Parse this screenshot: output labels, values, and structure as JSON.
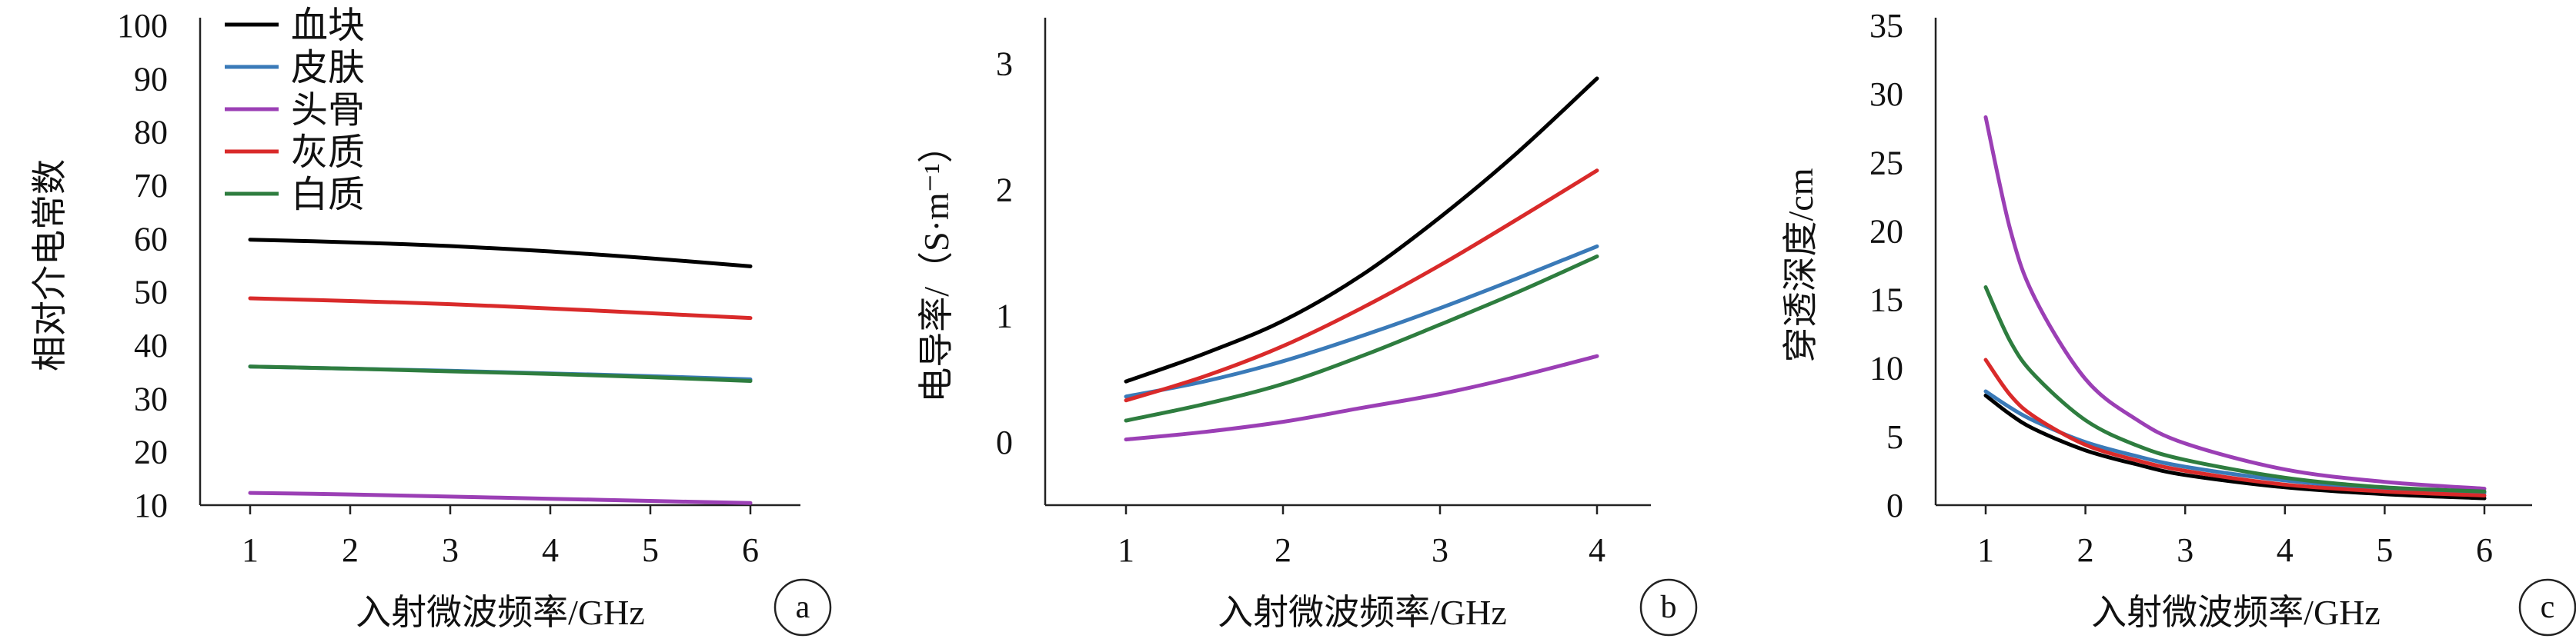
{
  "legend": [
    {
      "label": "血块",
      "color": "#000000"
    },
    {
      "label": "皮肤",
      "color": "#3a7ab8"
    },
    {
      "label": "头骨",
      "color": "#9b3fb5"
    },
    {
      "label": "灰质",
      "color": "#d92a2a"
    },
    {
      "label": "白质",
      "color": "#2e7d3f"
    }
  ],
  "chart_data": [
    {
      "panel": "a",
      "type": "line",
      "xlabel": "入射微波频率/GHz",
      "ylabel": "相对介电常数",
      "xlim": [
        1,
        6
      ],
      "ylim": [
        10,
        100
      ],
      "xticks": [
        1,
        2,
        3,
        4,
        5,
        6
      ],
      "yticks": [
        10,
        20,
        30,
        40,
        50,
        60,
        70,
        80,
        90,
        100
      ],
      "x": [
        1,
        2,
        3,
        4,
        5,
        6
      ],
      "series": [
        {
          "name": "血块",
          "color": "#000000",
          "values": [
            59.8,
            59.3,
            58.6,
            57.6,
            56.3,
            54.8
          ]
        },
        {
          "name": "皮肤",
          "color": "#3a7ab8",
          "values": [
            36.0,
            35.6,
            35.2,
            34.7,
            34.2,
            33.6
          ]
        },
        {
          "name": "头骨",
          "color": "#9b3fb5",
          "values": [
            12.3,
            12.0,
            11.6,
            11.2,
            10.8,
            10.4
          ]
        },
        {
          "name": "灰质",
          "color": "#d92a2a",
          "values": [
            48.8,
            48.3,
            47.7,
            46.9,
            46.0,
            45.1
          ]
        },
        {
          "name": "白质",
          "color": "#2e7d3f",
          "values": [
            36.0,
            35.6,
            35.1,
            34.6,
            34.0,
            33.3
          ]
        }
      ],
      "legend_position": "top-left",
      "grid": false
    },
    {
      "panel": "b",
      "type": "line",
      "xlabel": "入射微波频率/GHz",
      "ylabel": "电导率/（S·m⁻¹）",
      "xlim": [
        1,
        4
      ],
      "ylim": [
        -0.5,
        3.3
      ],
      "xticks": [
        1,
        2,
        3,
        4
      ],
      "yticks": [
        0,
        1,
        2,
        3
      ],
      "x": [
        1,
        1.5,
        2,
        2.5,
        3,
        3.5,
        4
      ],
      "series": [
        {
          "name": "血块",
          "color": "#000000",
          "values": [
            0.48,
            0.7,
            0.96,
            1.32,
            1.78,
            2.3,
            2.88
          ]
        },
        {
          "name": "皮肤",
          "color": "#3a7ab8",
          "values": [
            0.36,
            0.48,
            0.64,
            0.84,
            1.06,
            1.3,
            1.55
          ]
        },
        {
          "name": "头骨",
          "color": "#9b3fb5",
          "values": [
            0.02,
            0.08,
            0.16,
            0.27,
            0.38,
            0.52,
            0.68
          ]
        },
        {
          "name": "灰质",
          "color": "#d92a2a",
          "values": [
            0.33,
            0.52,
            0.76,
            1.06,
            1.4,
            1.77,
            2.15
          ]
        },
        {
          "name": "白质",
          "color": "#2e7d3f",
          "values": [
            0.17,
            0.3,
            0.46,
            0.68,
            0.93,
            1.19,
            1.47
          ]
        }
      ],
      "grid": false
    },
    {
      "panel": "c",
      "type": "line",
      "xlabel": "入射微波频率/GHz",
      "ylabel": "穿透深度/cm",
      "xlim": [
        1,
        6
      ],
      "ylim": [
        0,
        35
      ],
      "xticks": [
        1,
        2,
        3,
        4,
        5,
        6
      ],
      "yticks": [
        0,
        5,
        10,
        15,
        20,
        25,
        30,
        35
      ],
      "x": [
        1,
        1.25,
        1.5,
        2,
        2.5,
        3,
        4,
        5,
        6
      ],
      "series": [
        {
          "name": "血块",
          "color": "#000000",
          "values": [
            8.0,
            6.6,
            5.5,
            4.0,
            3.0,
            2.2,
            1.3,
            0.8,
            0.5
          ]
        },
        {
          "name": "皮肤",
          "color": "#3a7ab8",
          "values": [
            8.3,
            7.1,
            6.1,
            4.6,
            3.6,
            2.8,
            1.8,
            1.2,
            0.9
          ]
        },
        {
          "name": "头骨",
          "color": "#9b3fb5",
          "values": [
            28.3,
            20.0,
            15.0,
            9.2,
            6.3,
            4.5,
            2.6,
            1.7,
            1.2
          ]
        },
        {
          "name": "灰质",
          "color": "#d92a2a",
          "values": [
            10.6,
            8.0,
            6.4,
            4.4,
            3.3,
            2.5,
            1.5,
            1.0,
            0.7
          ]
        },
        {
          "name": "白质",
          "color": "#2e7d3f",
          "values": [
            15.9,
            11.9,
            9.4,
            6.2,
            4.4,
            3.3,
            2.0,
            1.3,
            1.0
          ]
        }
      ],
      "grid": false
    }
  ]
}
